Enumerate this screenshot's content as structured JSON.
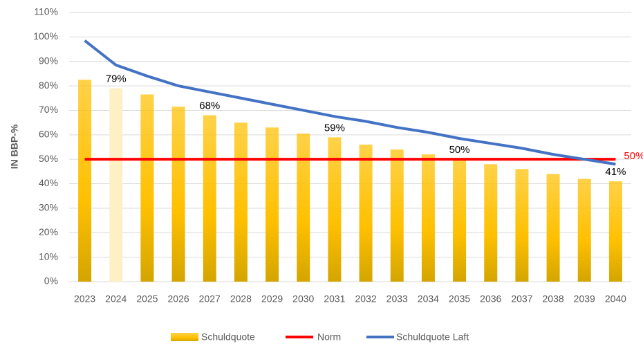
{
  "chart_data": {
    "type": "bar",
    "y_label": "IN BBP-%",
    "categories": [
      "2023",
      "2024",
      "2025",
      "2026",
      "2027",
      "2028",
      "2029",
      "2030",
      "2031",
      "2032",
      "2033",
      "2034",
      "2035",
      "2036",
      "2037",
      "2038",
      "2039",
      "2040"
    ],
    "series": [
      {
        "name": "Schuldquote",
        "type": "bar",
        "color": "#ffc000",
        "colors": [
          "#ffc000",
          "#fdf0c4",
          "#ffc000",
          "#ffc000",
          "#ffc000",
          "#ffc000",
          "#ffc000",
          "#ffc000",
          "#ffc000",
          "#ffc000",
          "#ffc000",
          "#ffc000",
          "#ffc000",
          "#ffc000",
          "#ffc000",
          "#ffc000",
          "#ffc000",
          "#ffc000"
        ],
        "values": [
          82.5,
          79,
          76.5,
          71.5,
          68,
          65,
          63,
          60.5,
          59,
          56,
          54,
          52,
          50,
          48,
          46,
          44,
          42,
          41
        ],
        "value_labels": [
          null,
          "79%",
          null,
          null,
          "68%",
          null,
          null,
          null,
          "59%",
          null,
          null,
          null,
          "50%",
          null,
          null,
          null,
          null,
          "41%"
        ]
      },
      {
        "name": "Norm",
        "type": "line",
        "color": "#ff0000",
        "values": [
          50,
          50,
          50,
          50,
          50,
          50,
          50,
          50,
          50,
          50,
          50,
          50,
          50,
          50,
          50,
          50,
          50,
          50
        ],
        "value_labels": [
          null,
          null,
          null,
          null,
          null,
          null,
          null,
          null,
          null,
          null,
          null,
          null,
          null,
          null,
          null,
          null,
          null,
          "50%"
        ]
      },
      {
        "name": "Schuldquote Laft",
        "type": "line",
        "color": "#4472c4",
        "values": [
          98.5,
          88.5,
          84,
          80,
          77.5,
          75,
          72.5,
          70,
          67.5,
          65.5,
          63,
          61,
          58.5,
          56.5,
          54.5,
          52,
          50,
          48
        ]
      }
    ],
    "ylim": [
      0,
      110
    ],
    "yticks": [
      {
        "value": 0,
        "label": "0%"
      },
      {
        "value": 10,
        "label": "10%"
      },
      {
        "value": 20,
        "label": "20%"
      },
      {
        "value": 30,
        "label": "30%"
      },
      {
        "value": 40,
        "label": "40%"
      },
      {
        "value": 50,
        "label": "50%"
      },
      {
        "value": 60,
        "label": "60%"
      },
      {
        "value": 70,
        "label": "70%"
      },
      {
        "value": 80,
        "label": "80%"
      },
      {
        "value": 90,
        "label": "90%"
      },
      {
        "value": 100,
        "label": "100%"
      },
      {
        "value": 110,
        "label": "110%"
      }
    ],
    "grid": true,
    "legend": "bottom"
  }
}
